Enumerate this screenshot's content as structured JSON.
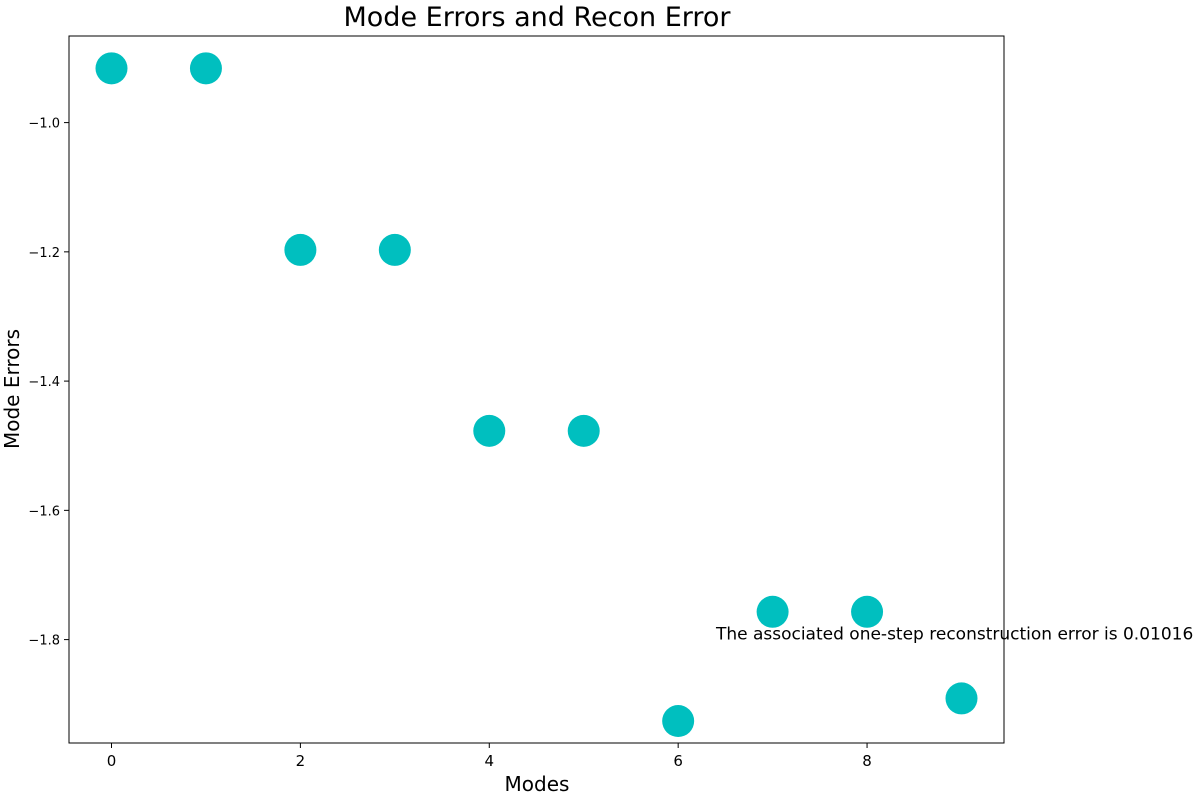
{
  "chart_data": {
    "type": "scatter",
    "title": "Mode Errors and Recon Error",
    "xlabel": "Modes",
    "ylabel": "Mode Errors",
    "x": [
      0,
      1,
      2,
      3,
      4,
      5,
      6,
      7,
      8,
      9
    ],
    "y": [
      -0.916,
      -0.916,
      -1.197,
      -1.197,
      -1.477,
      -1.477,
      -1.926,
      -1.757,
      -1.757,
      -1.891
    ],
    "xlim": [
      -0.45,
      9.45
    ],
    "ylim": [
      -1.96,
      -0.866
    ],
    "xticks": [
      0,
      2,
      4,
      6,
      8
    ],
    "xtick_labels": [
      "0",
      "2",
      "4",
      "6",
      "8"
    ],
    "yticks": [
      -1.0,
      -1.2,
      -1.4,
      -1.6,
      -1.8
    ],
    "ytick_labels": [
      "−1.0",
      "−1.2",
      "−1.4",
      "−1.6",
      "−1.8"
    ],
    "marker_color": "#00bfbf",
    "grid": false,
    "annotation": {
      "text": "The associated one-step reconstruction error is 0.01016",
      "x": 6.4,
      "y": -1.8
    }
  }
}
